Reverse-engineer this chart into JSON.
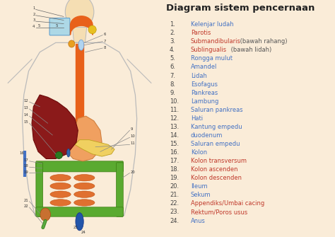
{
  "title": "Diagram sistem pencernaan",
  "title_fontsize": 9.5,
  "title_fontweight": "bold",
  "background_color": "#faecd8",
  "items": [
    {
      "num": "1.",
      "text": "Kelenjar ludah",
      "color": "#4472c4",
      "suffix": "",
      "suffix_color": "#555555"
    },
    {
      "num": "2.",
      "text": "Parotis",
      "color": "#c0392b",
      "suffix": "",
      "suffix_color": "#555555"
    },
    {
      "num": "3.",
      "text": "Submandibularis",
      "color": "#c0392b",
      "suffix": " (bawah rahang)",
      "suffix_color": "#555555"
    },
    {
      "num": "4.",
      "text": "Sublingualis",
      "color": "#c0392b",
      "suffix": " (bawah lidah)",
      "suffix_color": "#555555"
    },
    {
      "num": "5.",
      "text": "Rongga mulut",
      "color": "#4472c4",
      "suffix": "",
      "suffix_color": "#555555"
    },
    {
      "num": "6.",
      "text": "Amandel",
      "color": "#4472c4",
      "suffix": "",
      "suffix_color": "#555555"
    },
    {
      "num": "7.",
      "text": "Lidah",
      "color": "#4472c4",
      "suffix": "",
      "suffix_color": "#555555"
    },
    {
      "num": "8.",
      "text": "Esofagus",
      "color": "#4472c4",
      "suffix": "",
      "suffix_color": "#555555"
    },
    {
      "num": "9.",
      "text": "Pankreas",
      "color": "#4472c4",
      "suffix": "",
      "suffix_color": "#555555"
    },
    {
      "num": "10.",
      "text": "Lambung",
      "color": "#4472c4",
      "suffix": "",
      "suffix_color": "#555555"
    },
    {
      "num": "11.",
      "text": "Saluran pankreas",
      "color": "#4472c4",
      "suffix": "",
      "suffix_color": "#555555"
    },
    {
      "num": "12.",
      "text": "Hati",
      "color": "#4472c4",
      "suffix": "",
      "suffix_color": "#555555"
    },
    {
      "num": "13.",
      "text": "Kantung empedu",
      "color": "#4472c4",
      "suffix": "",
      "suffix_color": "#555555"
    },
    {
      "num": "14.",
      "text": "duodenum",
      "color": "#4472c4",
      "suffix": "",
      "suffix_color": "#555555"
    },
    {
      "num": "15.",
      "text": "Saluran empedu",
      "color": "#4472c4",
      "suffix": "",
      "suffix_color": "#555555"
    },
    {
      "num": "16.",
      "text": "Kolon",
      "color": "#4472c4",
      "suffix": "",
      "suffix_color": "#555555"
    },
    {
      "num": "17.",
      "text": "Kolon transversum",
      "color": "#c0392b",
      "suffix": "",
      "suffix_color": "#555555"
    },
    {
      "num": "18.",
      "text": "Kolon ascenden",
      "color": "#c0392b",
      "suffix": "",
      "suffix_color": "#555555"
    },
    {
      "num": "19.",
      "text": "Kolon descenden",
      "color": "#c0392b",
      "suffix": "",
      "suffix_color": "#555555"
    },
    {
      "num": "20.",
      "text": "Ileum",
      "color": "#4472c4",
      "suffix": "",
      "suffix_color": "#555555"
    },
    {
      "num": "21.",
      "text": "Sekum",
      "color": "#4472c4",
      "suffix": "",
      "suffix_color": "#555555"
    },
    {
      "num": "22.",
      "text": "Appendiks/Umbai cacing",
      "color": "#c0392b",
      "suffix": "",
      "suffix_color": "#555555"
    },
    {
      "num": "23.",
      "text": "Rektum/Poros usus",
      "color": "#c0392b",
      "suffix": "",
      "suffix_color": "#555555"
    },
    {
      "num": "24.",
      "text": "Anus",
      "color": "#4472c4",
      "suffix": "",
      "suffix_color": "#555555"
    }
  ],
  "esophagus_color": "#e8611a",
  "stomach_color": "#f0a060",
  "liver_color": "#8b1a1a",
  "intestine_color": "#4a8a30",
  "small_intestine_color": "#e07030",
  "mouth_color": "#add8e6",
  "pancreas_color": "#f0c060",
  "gallbladder_color": "#3a7a30",
  "rectum_color": "#1a5a8a",
  "appendix_color": "#3a7a30"
}
